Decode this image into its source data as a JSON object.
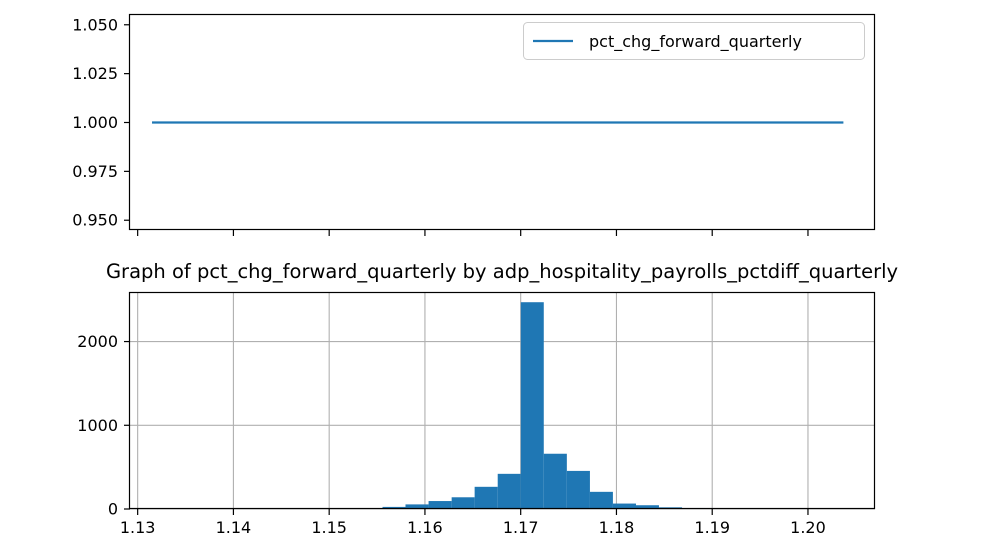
{
  "figure": {
    "line_color": "#1f77b4",
    "bar_color": "#1f77b4",
    "grid_color": "#b0b0b0"
  },
  "chart_data": [
    {
      "type": "line",
      "title": "",
      "xlabel": "",
      "ylabel": "",
      "x_range": [
        1.1315,
        1.2037
      ],
      "ylim": [
        0.945,
        1.055
      ],
      "yticks": [
        "0.950",
        "0.975",
        "1.000",
        "1.025",
        "1.050"
      ],
      "ytick_values": [
        0.95,
        0.975,
        1.0,
        1.025,
        1.05
      ],
      "xticks": [
        1.13,
        1.14,
        1.15,
        1.16,
        1.17,
        1.18,
        1.19,
        1.2
      ],
      "xtick_labels_visible": false,
      "series": [
        {
          "name": "pct_chg_forward_quarterly",
          "x": [
            1.1315,
            1.2037
          ],
          "y": [
            1.0,
            1.0
          ]
        }
      ],
      "legend": {
        "entries": [
          "pct_chg_forward_quarterly"
        ],
        "position": "upper right"
      },
      "grid": false
    },
    {
      "type": "bar",
      "subtype": "histogram",
      "title": "Graph of pct_chg_forward_quarterly by adp_hospitality_payrolls_pctdiff_quarterly",
      "xlabel": "",
      "ylabel": "",
      "xlim": [
        1.1292,
        1.207
      ],
      "ylim": [
        0,
        2580
      ],
      "xticks": [
        "1.13",
        "1.14",
        "1.15",
        "1.16",
        "1.17",
        "1.18",
        "1.19",
        "1.20"
      ],
      "xtick_values": [
        1.13,
        1.14,
        1.15,
        1.16,
        1.17,
        1.18,
        1.19,
        1.2
      ],
      "yticks": [
        "0",
        "1000",
        "2000"
      ],
      "ytick_values": [
        0,
        1000,
        2000
      ],
      "bins": [
        [
          1.1315,
          1.13391,
          2
        ],
        [
          1.13391,
          1.13632,
          1
        ],
        [
          1.13632,
          1.13872,
          1
        ],
        [
          1.13872,
          1.14113,
          1
        ],
        [
          1.14113,
          1.14353,
          1
        ],
        [
          1.14353,
          1.14594,
          2
        ],
        [
          1.14594,
          1.14835,
          2
        ],
        [
          1.14835,
          1.15075,
          3
        ],
        [
          1.15075,
          1.15316,
          5
        ],
        [
          1.15316,
          1.15557,
          10
        ],
        [
          1.15557,
          1.15797,
          25
        ],
        [
          1.15797,
          1.16038,
          55
        ],
        [
          1.16038,
          1.16279,
          95
        ],
        [
          1.16279,
          1.16519,
          140
        ],
        [
          1.16519,
          1.1676,
          265
        ],
        [
          1.1676,
          1.17001,
          420
        ],
        [
          1.17001,
          1.17241,
          2470
        ],
        [
          1.17241,
          1.17482,
          660
        ],
        [
          1.17482,
          1.17723,
          455
        ],
        [
          1.17723,
          1.17963,
          205
        ],
        [
          1.17963,
          1.18204,
          65
        ],
        [
          1.18204,
          1.18444,
          45
        ],
        [
          1.18444,
          1.18685,
          20
        ],
        [
          1.18685,
          1.18926,
          12
        ],
        [
          1.18926,
          1.19166,
          8
        ],
        [
          1.19166,
          1.19407,
          5
        ],
        [
          1.19407,
          1.19648,
          4
        ],
        [
          1.19648,
          1.19888,
          3
        ],
        [
          1.19888,
          1.20129,
          2
        ],
        [
          1.20129,
          1.2037,
          2
        ]
      ],
      "grid": true
    }
  ]
}
